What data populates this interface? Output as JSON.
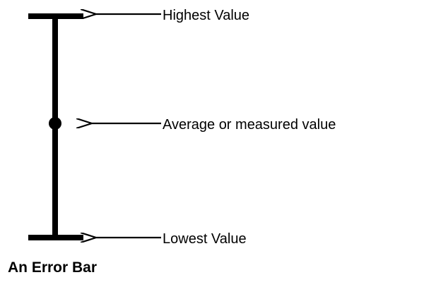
{
  "diagram": {
    "labels": {
      "highest": "Highest Value",
      "average": "Average or measured value",
      "lowest": "Lowest Value"
    },
    "caption": "An Error Bar",
    "colors": {
      "line": "#000000",
      "text": "#000000",
      "background": "#ffffff"
    }
  }
}
